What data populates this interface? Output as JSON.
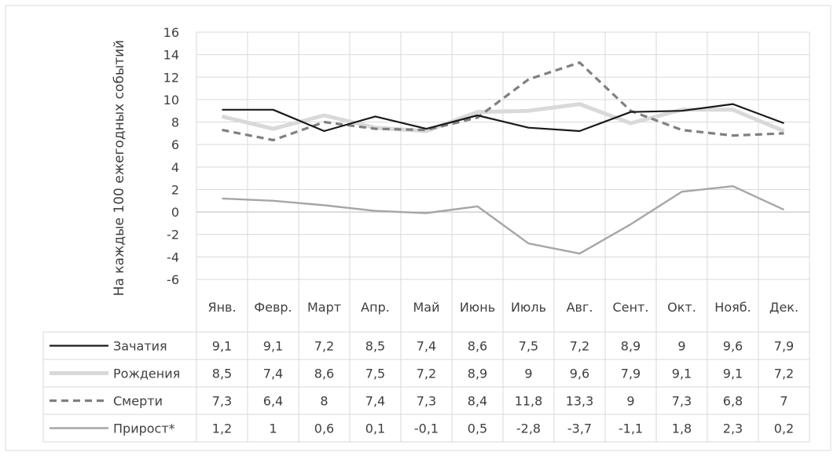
{
  "chart_data": {
    "type": "line",
    "ylabel": "На каждые 100 ежегодных событий",
    "ylim": [
      -6,
      16
    ],
    "yticks": [
      -6,
      -4,
      -2,
      0,
      2,
      4,
      6,
      8,
      10,
      12,
      14,
      16
    ],
    "grid": true,
    "legend": "table-left",
    "categories": [
      "Янв.",
      "Февр.",
      "Март",
      "Апр.",
      "Май",
      "Июнь",
      "Июль",
      "Авг.",
      "Сент.",
      "Окт.",
      "Нояб.",
      "Дек."
    ],
    "series": [
      {
        "name": "Зачатия",
        "color": "#1a1a1a",
        "style": "solid-thin",
        "values": [
          9.1,
          9.1,
          7.2,
          8.5,
          7.4,
          8.6,
          7.5,
          7.2,
          8.9,
          9,
          9.6,
          7.9
        ],
        "labels": [
          "9,1",
          "9,1",
          "7,2",
          "8,5",
          "7,4",
          "8,6",
          "7,5",
          "7,2",
          "8,9",
          "9",
          "9,6",
          "7,9"
        ]
      },
      {
        "name": "Рождения",
        "color": "#d9d9d9",
        "style": "solid-thick",
        "values": [
          8.5,
          7.4,
          8.6,
          7.5,
          7.2,
          8.9,
          9,
          9.6,
          7.9,
          9.1,
          9.1,
          7.2
        ],
        "labels": [
          "8,5",
          "7,4",
          "8,6",
          "7,5",
          "7,2",
          "8,9",
          "9",
          "9,6",
          "7,9",
          "9,1",
          "9,1",
          "7,2"
        ]
      },
      {
        "name": "Смерти",
        "color": "#808080",
        "style": "dashed",
        "values": [
          7.3,
          6.4,
          8,
          7.4,
          7.3,
          8.4,
          11.8,
          13.3,
          9,
          7.3,
          6.8,
          7
        ],
        "labels": [
          "7,3",
          "6,4",
          "8",
          "7,4",
          "7,3",
          "8,4",
          "11,8",
          "13,3",
          "9",
          "7,3",
          "6,8",
          "7"
        ]
      },
      {
        "name": "Прирост*",
        "color": "#a6a6a6",
        "style": "solid-medium",
        "values": [
          1.2,
          1,
          0.6,
          0.1,
          -0.1,
          0.5,
          -2.8,
          -3.7,
          -1.1,
          1.8,
          2.3,
          0.2
        ],
        "labels": [
          "1,2",
          "1",
          "0,6",
          "0,1",
          "-0,1",
          "0,5",
          "-2,8",
          "-3,7",
          "-1,1",
          "1,8",
          "2,3",
          "0,2"
        ]
      }
    ]
  }
}
